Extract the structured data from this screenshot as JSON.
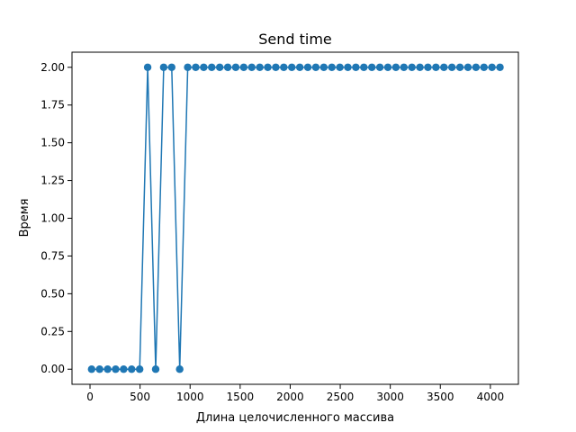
{
  "chart_data": {
    "type": "line",
    "title": "Send time",
    "xlabel": "Длина целочисленного массива",
    "ylabel": "Время",
    "xlim": [
      -180,
      4280
    ],
    "ylim": [
      -0.1,
      2.1
    ],
    "grid": false,
    "legend": "none",
    "x_ticks": [
      0,
      500,
      1000,
      1500,
      2000,
      2500,
      3000,
      3500,
      4000
    ],
    "x_tick_labels": [
      "0",
      "500",
      "1000",
      "1500",
      "2000",
      "2500",
      "3000",
      "3500",
      "4000"
    ],
    "y_ticks": [
      0,
      0.25,
      0.5,
      0.75,
      1.0,
      1.25,
      1.5,
      1.75,
      2.0
    ],
    "y_tick_labels": [
      "0.00",
      "0.25",
      "0.50",
      "0.75",
      "1.00",
      "1.25",
      "1.50",
      "1.75",
      "2.00"
    ],
    "series": [
      {
        "color": "#1f77b4",
        "marker": "circle",
        "x": [
          16,
          96,
          176,
          256,
          336,
          416,
          496,
          576,
          656,
          736,
          816,
          896,
          976,
          1056,
          1136,
          1216,
          1296,
          1376,
          1456,
          1536,
          1616,
          1696,
          1776,
          1856,
          1936,
          2016,
          2096,
          2176,
          2256,
          2336,
          2416,
          2496,
          2576,
          2656,
          2736,
          2816,
          2896,
          2976,
          3056,
          3136,
          3216,
          3296,
          3376,
          3456,
          3536,
          3616,
          3696,
          3776,
          3856,
          3936,
          4016,
          4096
        ],
        "y": [
          0,
          0,
          0,
          0,
          0,
          0,
          0,
          2,
          0,
          2,
          2,
          0,
          2,
          2,
          2,
          2,
          2,
          2,
          2,
          2,
          2,
          2,
          2,
          2,
          2,
          2,
          2,
          2,
          2,
          2,
          2,
          2,
          2,
          2,
          2,
          2,
          2,
          2,
          2,
          2,
          2,
          2,
          2,
          2,
          2,
          2,
          2,
          2,
          2,
          2,
          2,
          2
        ]
      }
    ]
  }
}
